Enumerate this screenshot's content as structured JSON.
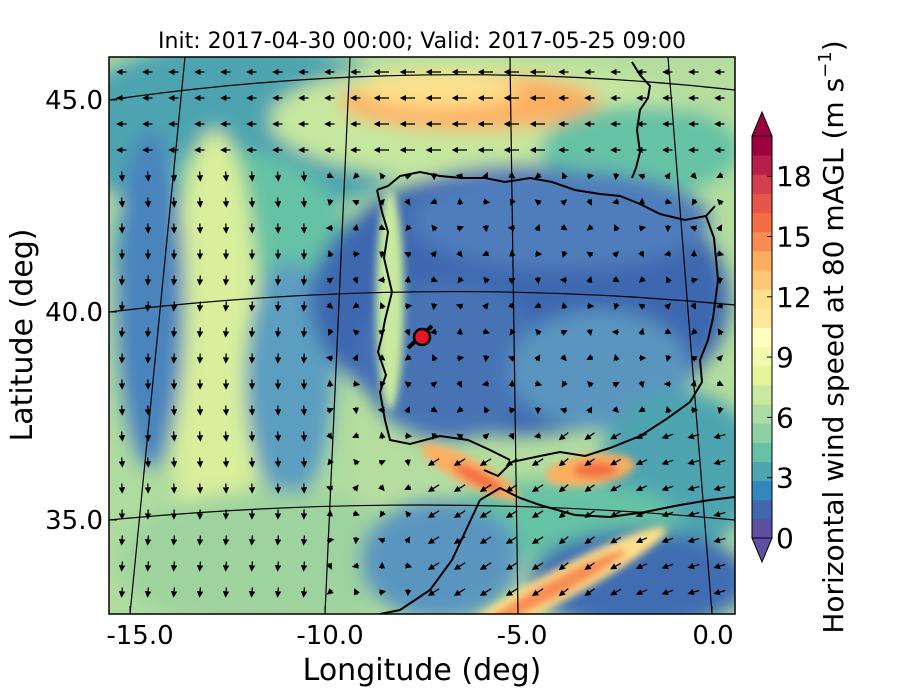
{
  "title": "Init: 2017-04-30 00:00; Valid: 2017-05-25 09:00",
  "axes": {
    "xlabel": "Longitude (deg)",
    "ylabel": "Latitude (deg)",
    "xticks": [
      "-15.0",
      "-10.0",
      "-5.0",
      "0.0"
    ],
    "yticks": [
      "45.0",
      "40.0",
      "35.0"
    ]
  },
  "colorbar": {
    "label_main": "Horizontal wind speed at 80 mAGL (m s",
    "label_sup": "−1",
    "label_close": ")",
    "ticks": [
      "0",
      "3",
      "6",
      "9",
      "12",
      "15",
      "18"
    ],
    "min": 0,
    "max": 20,
    "extend": "both",
    "colormap": "Spectral_r",
    "colors": [
      "#5e4fa2",
      "#3f68ad",
      "#3288bd",
      "#4ea4b0",
      "#66c2a5",
      "#8cd1a4",
      "#abdda4",
      "#c8e99e",
      "#e6f598",
      "#f2faac",
      "#ffffbf",
      "#fee89a",
      "#fee08b",
      "#fdc776",
      "#fdae61",
      "#f88d52",
      "#f46d43",
      "#e55649",
      "#d53e4f",
      "#b51f49",
      "#9e0142"
    ]
  },
  "map": {
    "region": "Iberian Peninsula",
    "lon_range": [
      -16,
      0.3
    ],
    "lat_range": [
      32.5,
      46.2
    ],
    "station_marker": {
      "lon": -7.7,
      "lat": 39.3,
      "color": "#e8132b"
    },
    "vector_field": "wind arrows"
  },
  "chart_data": {
    "type": "heatmap",
    "title": "Init: 2017-04-30 00:00; Valid: 2017-05-25 09:00",
    "xlabel": "Longitude (deg)",
    "ylabel": "Latitude (deg)",
    "xlim": [
      -16,
      0.3
    ],
    "ylim": [
      32.5,
      46.2
    ],
    "zlabel": "Horizontal wind speed at 80 mAGL (m s-1)",
    "zlim": [
      0,
      20
    ],
    "max_wind_regions": [
      {
        "lon": -6.0,
        "lat": 44.8,
        "speed_approx": 15
      },
      {
        "lon": -5.5,
        "lat": 35.6,
        "speed_approx": 16
      },
      {
        "lon": -3.0,
        "lat": 36.0,
        "speed_approx": 15
      },
      {
        "lon": -4.0,
        "lat": 33.5,
        "speed_approx": 16
      }
    ],
    "grid": true
  }
}
